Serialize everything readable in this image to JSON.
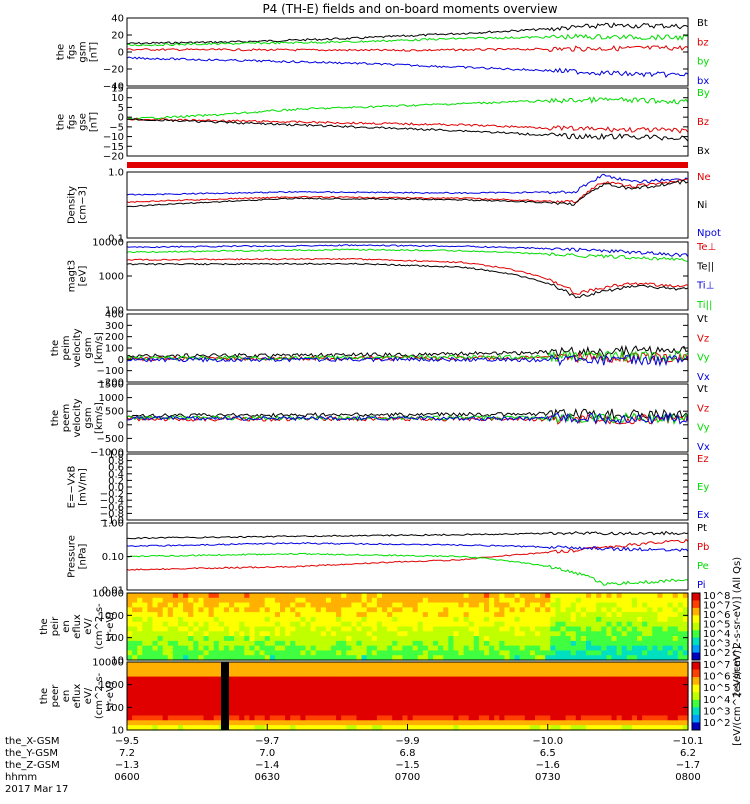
{
  "title": "P4 (TH-E) fields and on-board moments overview",
  "colors": {
    "black": "#000000",
    "red": "#e00000",
    "green": "#00dd00",
    "blue": "#0000e0",
    "frame": "#000000"
  },
  "chart_data": [
    {
      "type": "line",
      "id": "fgs_gsm",
      "ylabel": [
        "the",
        "fgs",
        "gsm",
        "[nT]"
      ],
      "ylim": [
        -40,
        40
      ],
      "ticks": [
        "40",
        "20",
        "0",
        "−20",
        "−40"
      ],
      "legend": [
        {
          "name": "Bt",
          "color": "#000000"
        },
        {
          "name": "bz",
          "color": "#e00000"
        },
        {
          "name": "by",
          "color": "#00dd00"
        },
        {
          "name": "bx",
          "color": "#0000e0"
        }
      ],
      "series": [
        {
          "name": "Bt",
          "color": "#000000",
          "x": [
            0,
            0.2,
            0.4,
            0.6,
            0.75,
            0.85,
            0.95,
            1
          ],
          "y": [
            10,
            12,
            16,
            22,
            27,
            31,
            31,
            30
          ]
        },
        {
          "name": "bz",
          "color": "#e00000",
          "x": [
            0,
            0.5,
            1
          ],
          "y": [
            3,
            2,
            5
          ]
        },
        {
          "name": "by",
          "color": "#00dd00",
          "x": [
            0,
            0.2,
            0.4,
            0.6,
            0.8,
            1
          ],
          "y": [
            8,
            10,
            12,
            16,
            18,
            17
          ]
        },
        {
          "name": "bx",
          "color": "#0000e0",
          "x": [
            0,
            0.2,
            0.4,
            0.6,
            0.8,
            0.9,
            1
          ],
          "y": [
            -7,
            -10,
            -13,
            -18,
            -23,
            -26,
            -27
          ]
        }
      ]
    },
    {
      "type": "line",
      "id": "fgs_gse",
      "ylabel": [
        "the",
        "fgs",
        "gse",
        "[nT]"
      ],
      "ylim": [
        -20,
        15
      ],
      "ticks": [
        "15",
        "10",
        "5",
        "0",
        "−5",
        "−10",
        "−15",
        "−20"
      ],
      "legend": [
        {
          "name": "By",
          "color": "#00dd00"
        },
        {
          "name": "Bz",
          "color": "#e00000"
        },
        {
          "name": "Bx",
          "color": "#000000"
        }
      ],
      "series": [
        {
          "name": "By",
          "color": "#00dd00",
          "x": [
            0,
            0.15,
            0.3,
            0.5,
            0.7,
            0.85,
            1
          ],
          "y": [
            -1,
            1,
            4,
            6,
            8,
            9,
            8
          ]
        },
        {
          "name": "Bz",
          "color": "#e00000",
          "x": [
            0,
            0.2,
            0.4,
            0.6,
            0.8,
            1
          ],
          "y": [
            -1,
            -2,
            -3,
            -4,
            -6,
            -7
          ]
        },
        {
          "name": "Bx",
          "color": "#000000",
          "x": [
            0,
            0.2,
            0.4,
            0.6,
            0.8,
            0.9,
            1
          ],
          "y": [
            -1,
            -3,
            -5,
            -7,
            -10,
            -10,
            -11
          ]
        }
      ]
    },
    {
      "type": "line",
      "id": "density",
      "ylabel": [
        "Density",
        "[cm−3]"
      ],
      "ylim": [
        0.1,
        1.0
      ],
      "log": true,
      "ticks": [
        "1.0",
        "0.1"
      ],
      "legend": [
        {
          "name": "Ne",
          "color": "#e00000"
        },
        {
          "name": "Ni",
          "color": "#000000"
        },
        {
          "name": "Npot",
          "color": "#0000e0"
        }
      ],
      "series": [
        {
          "name": "Npot",
          "color": "#0000e0",
          "x": [
            0,
            0.3,
            0.6,
            0.8,
            0.85,
            0.9,
            1
          ],
          "y": [
            0.45,
            0.5,
            0.48,
            0.5,
            0.9,
            0.7,
            0.8
          ]
        },
        {
          "name": "Ne",
          "color": "#e00000",
          "x": [
            0,
            0.3,
            0.6,
            0.8,
            0.85,
            0.9,
            1
          ],
          "y": [
            0.35,
            0.42,
            0.4,
            0.35,
            0.7,
            0.6,
            0.75
          ]
        },
        {
          "name": "Ni",
          "color": "#000000",
          "x": [
            0,
            0.3,
            0.6,
            0.8,
            0.85,
            0.9,
            1
          ],
          "y": [
            0.3,
            0.4,
            0.38,
            0.33,
            0.65,
            0.55,
            0.72
          ]
        }
      ]
    },
    {
      "type": "line",
      "id": "temperature",
      "ylabel": [
        "magt3",
        "[eV]"
      ],
      "ylim": [
        100,
        10000
      ],
      "log": true,
      "ticks": [
        "10000",
        "1000",
        "100"
      ],
      "legend": [
        {
          "name": "Te⊥",
          "color": "#e00000"
        },
        {
          "name": "Te||",
          "color": "#000000"
        },
        {
          "name": "Ti⊥",
          "color": "#0000e0"
        },
        {
          "name": "Ti||",
          "color": "#00dd00"
        }
      ],
      "series": [
        {
          "name": "Ti⊥",
          "color": "#0000e0",
          "x": [
            0,
            0.4,
            0.6,
            0.8,
            0.9,
            1
          ],
          "y": [
            7000,
            8000,
            7500,
            6000,
            5000,
            4000
          ]
        },
        {
          "name": "Ti||",
          "color": "#00dd00",
          "x": [
            0,
            0.4,
            0.6,
            0.8,
            0.9,
            1
          ],
          "y": [
            5000,
            6000,
            5500,
            4000,
            3500,
            3000
          ]
        },
        {
          "name": "Te⊥",
          "color": "#e00000",
          "x": [
            0,
            0.4,
            0.6,
            0.75,
            0.8,
            0.9,
            1
          ],
          "y": [
            3000,
            3200,
            2500,
            800,
            300,
            600,
            500
          ]
        },
        {
          "name": "Te||",
          "color": "#000000",
          "x": [
            0,
            0.4,
            0.6,
            0.75,
            0.8,
            0.9,
            1
          ],
          "y": [
            2200,
            2300,
            1800,
            600,
            220,
            500,
            400
          ]
        }
      ]
    },
    {
      "type": "line",
      "id": "peim_velocity",
      "ylabel": [
        "the",
        "peim",
        "velocity",
        "gsm",
        "[km/s]"
      ],
      "ylim": [
        -200,
        400
      ],
      "ticks": [
        "400",
        "300",
        "200",
        "100",
        "0",
        "−100",
        "−200"
      ],
      "legend": [
        {
          "name": "Vt",
          "color": "#000000"
        },
        {
          "name": "Vz",
          "color": "#e00000"
        },
        {
          "name": "Vy",
          "color": "#00dd00"
        },
        {
          "name": "Vx",
          "color": "#0000e0"
        }
      ],
      "series": [
        {
          "name": "Vt",
          "color": "#000000",
          "x": [
            0,
            0.5,
            1
          ],
          "y": [
            30,
            40,
            80
          ]
        },
        {
          "name": "Vz",
          "color": "#e00000",
          "x": [
            0,
            0.5,
            1
          ],
          "y": [
            5,
            10,
            20
          ]
        },
        {
          "name": "Vy",
          "color": "#00dd00",
          "x": [
            0,
            0.5,
            1
          ],
          "y": [
            10,
            15,
            30
          ]
        },
        {
          "name": "Vx",
          "color": "#0000e0",
          "x": [
            0,
            0.5,
            1
          ],
          "y": [
            -5,
            0,
            -10
          ]
        }
      ]
    },
    {
      "type": "line",
      "id": "peem_velocity",
      "ylabel": [
        "the",
        "peem",
        "velocity",
        "gsm",
        "[km/s]"
      ],
      "ylim": [
        -1500,
        1500
      ],
      "ticks": [
        "1500",
        "1000",
        "500",
        "0",
        "−500",
        "−1000"
      ],
      "legend": [
        {
          "name": "Vt",
          "color": "#000000"
        },
        {
          "name": "Vz",
          "color": "#e00000"
        },
        {
          "name": "Vy",
          "color": "#00dd00"
        },
        {
          "name": "Vx",
          "color": "#0000e0"
        }
      ],
      "series": [
        {
          "name": "Vt",
          "color": "#000000",
          "x": [
            0,
            0.5,
            1
          ],
          "y": [
            100,
            150,
            200
          ]
        },
        {
          "name": "Vz",
          "color": "#e00000",
          "x": [
            0,
            0.5,
            1
          ],
          "y": [
            -50,
            -40,
            -60
          ]
        },
        {
          "name": "Vy",
          "color": "#00dd00",
          "x": [
            0,
            0.5,
            1
          ],
          "y": [
            0,
            10,
            -20
          ]
        },
        {
          "name": "Vx",
          "color": "#0000e0",
          "x": [
            0,
            0.5,
            1
          ],
          "y": [
            -10,
            -20,
            -30
          ]
        }
      ]
    },
    {
      "type": "line",
      "id": "efield",
      "ylabel": [
        "E=−VxB",
        "[mV/m]"
      ],
      "ylim": [
        -1.0,
        1.0
      ],
      "ticks": [
        "1.0",
        "0.8",
        "0.6",
        "0.4",
        "0.2",
        "0.0",
        "−0.2",
        "−0.4",
        "−0.6",
        "−0.8",
        "−1.0"
      ],
      "legend": [
        {
          "name": "Ez",
          "color": "#e00000"
        },
        {
          "name": "Ey",
          "color": "#00dd00"
        },
        {
          "name": "Ex",
          "color": "#0000e0"
        }
      ],
      "series": []
    },
    {
      "type": "line",
      "id": "pressure",
      "ylabel": [
        "Pressure",
        "[nPa]"
      ],
      "ylim": [
        0.01,
        1.0
      ],
      "log": true,
      "ticks": [
        "1.00",
        "0.10",
        "0.01"
      ],
      "legend": [
        {
          "name": "Pt",
          "color": "#000000"
        },
        {
          "name": "Pb",
          "color": "#e00000"
        },
        {
          "name": "Pe",
          "color": "#00dd00"
        },
        {
          "name": "Pi",
          "color": "#0000e0"
        }
      ],
      "series": [
        {
          "name": "Pt",
          "color": "#000000",
          "x": [
            0,
            0.3,
            0.6,
            0.8,
            1
          ],
          "y": [
            0.35,
            0.4,
            0.45,
            0.5,
            0.5
          ]
        },
        {
          "name": "Pb",
          "color": "#e00000",
          "x": [
            0,
            0.3,
            0.6,
            0.8,
            1
          ],
          "y": [
            0.04,
            0.05,
            0.08,
            0.15,
            0.3
          ]
        },
        {
          "name": "Pe",
          "color": "#00dd00",
          "x": [
            0,
            0.3,
            0.6,
            0.75,
            0.85,
            1
          ],
          "y": [
            0.1,
            0.12,
            0.1,
            0.05,
            0.015,
            0.02
          ]
        },
        {
          "name": "Pi",
          "color": "#0000e0",
          "x": [
            0,
            0.3,
            0.6,
            0.8,
            1
          ],
          "y": [
            0.2,
            0.25,
            0.22,
            0.18,
            0.15
          ]
        }
      ]
    },
    {
      "type": "heatmap",
      "id": "peir_en_eflux",
      "ylabel": [
        "the",
        "peir",
        "en",
        "eflux",
        "eV/",
        "(cm^2-s-",
        "sr-eV)"
      ],
      "ticks": [
        "10000",
        "1000",
        "100",
        "10"
      ],
      "colorbar": {
        "label": "[eV/(cm^2-s-sr-eV)] (All Qs)",
        "ticks": [
          "10^8",
          "10^7",
          "10^6",
          "10^5",
          "10^4",
          "10^3",
          "10^2"
        ]
      }
    },
    {
      "type": "heatmap",
      "id": "peer_en_eflux",
      "ylabel": [
        "the",
        "peer",
        "en",
        "eflux",
        "eV/",
        "(cm^2-s-",
        "sr-eV)"
      ],
      "ticks": [
        "10000",
        "1000",
        "100",
        "10"
      ],
      "colorbar": {
        "label": "[eV/(cm^2-s-sr-eV)]",
        "ticks": [
          "10^7",
          "10^6",
          "10^5",
          "10^4",
          "10^3",
          "10^2"
        ]
      }
    }
  ],
  "xaxis": {
    "rows": [
      {
        "label": "the_X-GSM",
        "values": [
          "−9.5",
          "−9.7",
          "−9.9",
          "−10.0",
          "−10.1"
        ]
      },
      {
        "label": "the_Y-GSM",
        "values": [
          "7.2",
          "7.0",
          "6.8",
          "6.5",
          "6.2"
        ]
      },
      {
        "label": "the_Z-GSM",
        "values": [
          "−1.3",
          "−1.4",
          "−1.5",
          "−1.6",
          "−1.7"
        ]
      },
      {
        "label": "hhmm",
        "values": [
          "0600",
          "0630",
          "0700",
          "0730",
          "0800"
        ]
      }
    ],
    "date": "2017 Mar 17"
  }
}
